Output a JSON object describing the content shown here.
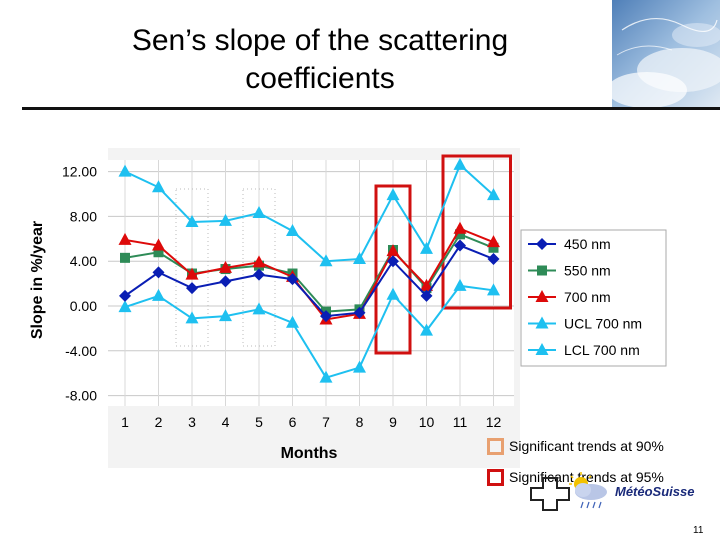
{
  "slide": {
    "title_line1": "Sen’s slope of the scattering",
    "title_line2": "coefficients",
    "page_number": "11"
  },
  "notes": {
    "sig90": "Significant trends at 90%",
    "sig95": "Significant trends at 95%",
    "sig90_color": "#e8a070",
    "sig95_color": "#d01010"
  },
  "logo": {
    "text": "MétéoSuisse"
  },
  "chart_data": {
    "type": "line",
    "xlabel": "Months",
    "ylabel": "Slope in %/year",
    "categories": [
      "1",
      "2",
      "3",
      "4",
      "5",
      "6",
      "7",
      "8",
      "9",
      "10",
      "11",
      "12"
    ],
    "yticks": [
      "12.00",
      "8.00",
      "4.00",
      "0.00",
      "-4.00",
      "-8.00"
    ],
    "ylim": [
      -8,
      12
    ],
    "grid": true,
    "legend_position": "right",
    "series": [
      {
        "name": "450 nm",
        "color": "#0a1eb4",
        "marker": "diamond",
        "values": [
          0.9,
          3.0,
          1.6,
          2.2,
          2.8,
          2.4,
          -0.9,
          -0.6,
          4.0,
          0.9,
          5.4,
          4.2
        ]
      },
      {
        "name": "550 nm",
        "color": "#2e8b57",
        "marker": "square",
        "values": [
          4.3,
          4.8,
          2.9,
          3.3,
          3.6,
          2.9,
          -0.5,
          -0.3,
          5.0,
          1.6,
          6.4,
          5.2
        ]
      },
      {
        "name": "700 nm",
        "color": "#dd0a0a",
        "marker": "triangle",
        "values": [
          5.9,
          5.4,
          2.8,
          3.4,
          3.9,
          2.6,
          -1.2,
          -0.7,
          4.9,
          1.8,
          6.9,
          5.7
        ]
      },
      {
        "name": "UCL 700 nm",
        "color": "#1ec0f0",
        "marker": "triangle",
        "values": [
          12.0,
          10.6,
          7.5,
          7.6,
          8.3,
          6.7,
          4.0,
          4.2,
          9.9,
          5.1,
          12.6,
          9.9
        ]
      },
      {
        "name": "LCL 700 nm",
        "color": "#1ec0f0",
        "marker": "triangle",
        "values": [
          -0.1,
          0.9,
          -1.1,
          -0.9,
          -0.3,
          -1.5,
          -6.4,
          -5.5,
          1.0,
          -2.2,
          1.8,
          1.4
        ]
      }
    ],
    "significance_boxes_90": [
      {
        "from_month": 3,
        "to_month": 3
      },
      {
        "from_month": 5,
        "to_month": 5
      }
    ],
    "significance_boxes_95": [
      {
        "from_month": 9,
        "to_month": 9
      },
      {
        "from_month": 11,
        "to_month": 12
      }
    ]
  }
}
